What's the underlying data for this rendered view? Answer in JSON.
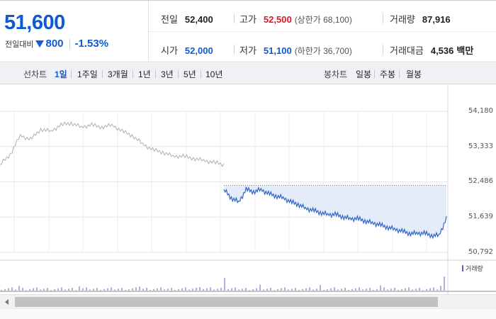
{
  "summary": {
    "current_price": "51,600",
    "change_label": "전일대비",
    "change_amount": "800",
    "change_rate": "-1.53%",
    "direction": "down",
    "prev_close_label": "전일",
    "prev_close": "52,400",
    "open_label": "시가",
    "open": "52,000",
    "high_label": "고가",
    "high": "52,500",
    "upper_limit_text": "(상한가 68,100)",
    "low_label": "저가",
    "low": "51,100",
    "lower_limit_text": "(하한가 36,700)",
    "volume_label": "거래량",
    "volume": "87,916",
    "trade_value_label": "거래대금",
    "trade_value": "4,536",
    "trade_value_unit": "백만"
  },
  "toolbar": {
    "line_chart_label": "선차트",
    "line_periods": [
      "1일",
      "1주일",
      "3개월",
      "1년",
      "3년",
      "5년",
      "10년"
    ],
    "active_period": "1일",
    "candle_chart_label": "봉차트",
    "candle_periods": [
      "일봉",
      "주봉",
      "월봉"
    ]
  },
  "chart_data": {
    "type": "line",
    "title": "",
    "xlabel": "",
    "ylabel": "",
    "y_ticks": [
      "54,180",
      "53,333",
      "52,486",
      "51,639",
      "50,792"
    ],
    "ylim": [
      50792,
      54180
    ],
    "reference_line": 52400,
    "series": [
      {
        "name": "",
        "color": "#b0b0b0",
        "values": [
          52900,
          53150,
          53600,
          53500,
          53750,
          53700,
          53850,
          53900,
          53800,
          53850,
          53800,
          53850,
          53700,
          53600,
          53400,
          53250,
          53200,
          53100,
          53100,
          53050,
          53000,
          52950,
          52900
        ]
      },
      {
        "name": "",
        "color": "#2f64c8",
        "values": [
          52300,
          52100,
          52000,
          52300,
          52250,
          52300,
          52200,
          52150,
          52100,
          52000,
          51950,
          51850,
          51800,
          51750,
          51700,
          51700,
          51650,
          51600,
          51600,
          51550,
          51500,
          51450,
          51400,
          51350,
          51300,
          51250,
          51250,
          51250,
          51200,
          51200,
          51600
        ]
      }
    ],
    "volume_label": "거래량",
    "volume_color": "#6b5bbf"
  }
}
